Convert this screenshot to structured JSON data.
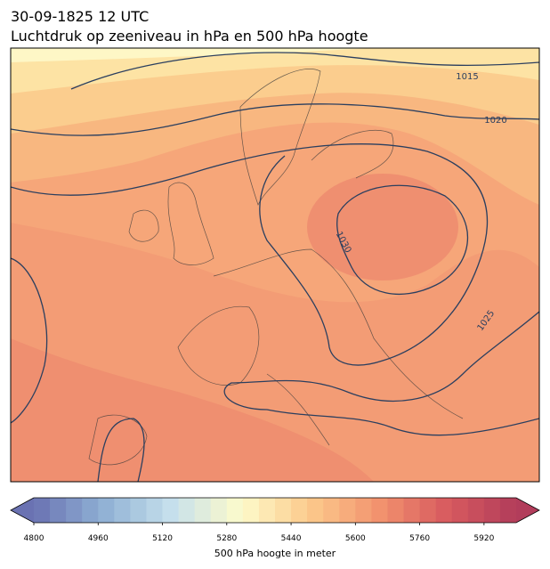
{
  "chart_data": {
    "type": "map",
    "title": "30-09-1825 12 UTC",
    "subtitle": "Luchtdruk op zeeniveau in hPa en 500 hPa hoogte",
    "contour_labels": [
      "1015",
      "1020",
      "1030",
      "1025"
    ],
    "colorbar": {
      "label": "500 hPa hoogte in meter",
      "lim": [
        4800,
        6000
      ],
      "step": 40,
      "ticks": [
        4800,
        4960,
        5120,
        5280,
        5440,
        5600,
        5760,
        5920
      ],
      "colormap": [
        "#6a72b2",
        "#8fb0d4",
        "#c6e0ec",
        "#fdfbcb",
        "#fcca8c",
        "#f2936e",
        "#d85a5f",
        "#b23d5b"
      ]
    }
  }
}
